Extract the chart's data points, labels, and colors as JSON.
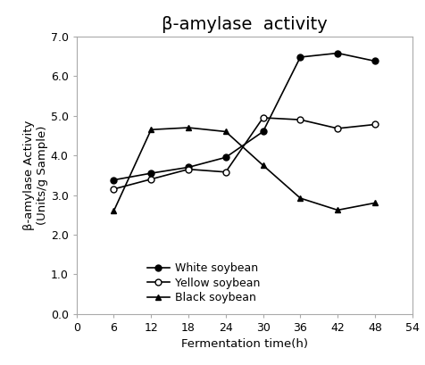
{
  "title": "β-amylase  activity",
  "xlabel": "Fermentation time(h)",
  "ylabel": "β-amylase Activity\n(Units/g Sample)",
  "xlim": [
    0,
    54
  ],
  "ylim": [
    0.0,
    7.0
  ],
  "xticks": [
    0,
    6,
    12,
    18,
    24,
    30,
    36,
    42,
    48,
    54
  ],
  "yticks": [
    0.0,
    1.0,
    2.0,
    3.0,
    4.0,
    5.0,
    6.0,
    7.0
  ],
  "white_soybean": {
    "x": [
      6,
      12,
      18,
      24,
      30,
      36,
      42,
      48
    ],
    "y": [
      3.38,
      3.55,
      3.7,
      3.95,
      4.6,
      6.48,
      6.58,
      6.38
    ],
    "color": "#000000",
    "marker": "o",
    "marker_face": "#000000",
    "label": "White soybean"
  },
  "yellow_soybean": {
    "x": [
      6,
      12,
      18,
      24,
      30,
      36,
      42,
      48
    ],
    "y": [
      3.15,
      3.4,
      3.65,
      3.58,
      4.95,
      4.9,
      4.68,
      4.78
    ],
    "color": "#000000",
    "marker": "o",
    "marker_face": "#ffffff",
    "label": "Yellow soybean"
  },
  "black_soybean": {
    "x": [
      6,
      12,
      18,
      24,
      30,
      36,
      42,
      48
    ],
    "y": [
      2.6,
      4.65,
      4.7,
      4.6,
      3.75,
      2.92,
      2.62,
      2.8
    ],
    "color": "#000000",
    "marker": "^",
    "marker_face": "#000000",
    "label": "Black soybean"
  },
  "title_fontsize": 14,
  "label_fontsize": 9.5,
  "tick_fontsize": 9,
  "legend_fontsize": 9,
  "background_color": "#ffffff",
  "fig_width": 4.76,
  "fig_height": 4.09,
  "dpi": 100
}
